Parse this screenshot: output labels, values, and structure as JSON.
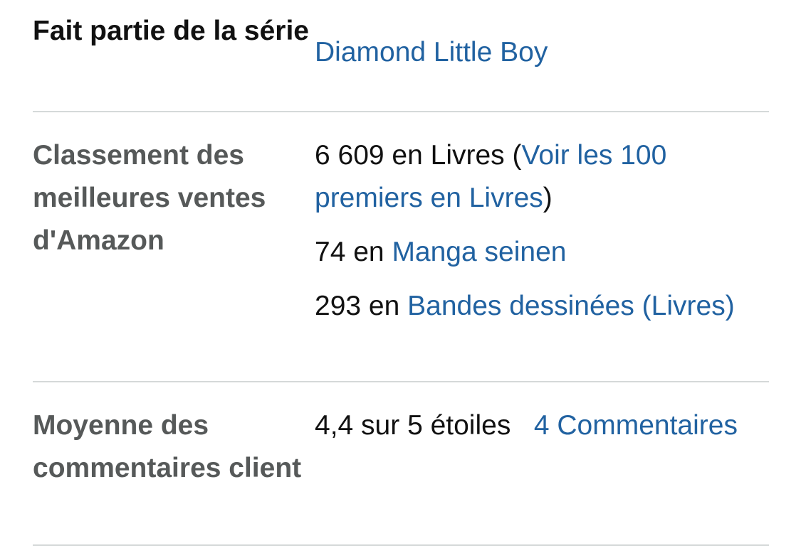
{
  "details": {
    "series": {
      "label": "Fait partie de la série",
      "value": "Diamond Little Boy"
    },
    "bestsellers_rank": {
      "label": "Classement des meilleures ventes d'Amazon",
      "entries": [
        {
          "rank": "6 609 en Livres (",
          "link": "Voir les 100 premiers en Livres",
          "suffix": ")"
        },
        {
          "rank": "74 en ",
          "link": "Manga seinen"
        },
        {
          "rank": "293 en ",
          "link": "Bandes dessinées (Livres)"
        }
      ]
    },
    "reviews": {
      "label": "Moyenne des commentaires client",
      "rating_text": "4,4 sur 5 étoiles",
      "count_link": "4 Commentaires"
    }
  },
  "colors": {
    "label_gray": "#565959",
    "link_blue": "#2162a1",
    "divider": "#d5d9d9"
  }
}
